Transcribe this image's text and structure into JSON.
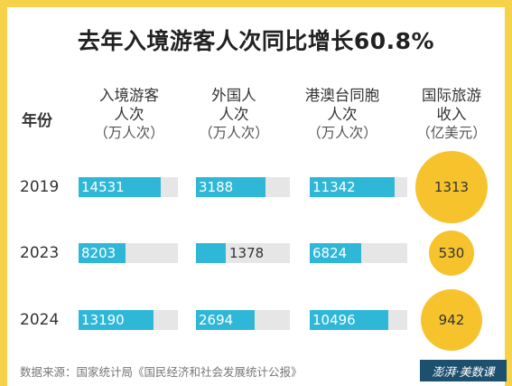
{
  "title": "去年入境游客人次同比增长60.8%",
  "headers": {
    "year": "年份",
    "inbound": {
      "line1": "入境游客",
      "line2": "人次",
      "unit": "（万人次）"
    },
    "foreign": {
      "line1": "外国人",
      "line2": "人次",
      "unit": "（万人次）"
    },
    "hkmt": {
      "line1": "港澳台同胞",
      "line2": "人次",
      "unit": "（万人次）"
    },
    "income": {
      "line1": "国际旅游",
      "line2": "收入",
      "unit": "（亿美元）"
    }
  },
  "chart_data": {
    "type": "bar",
    "categories": [
      "2019",
      "2023",
      "2024"
    ],
    "series": [
      {
        "name": "入境游客人次（万人次）",
        "values": [
          14531,
          8203,
          13190
        ]
      },
      {
        "name": "外国人人次（万人次）",
        "values": [
          3188,
          1378,
          2694
        ]
      },
      {
        "name": "港澳台同胞人次（万人次）",
        "values": [
          11342,
          6824,
          10496
        ]
      },
      {
        "name": "国际旅游收入（亿美元）",
        "values": [
          1313,
          530,
          942
        ]
      }
    ],
    "colors": {
      "bar": "#2fb7d8",
      "track": "#e6e6e6",
      "bubble": "#f6c32c",
      "frame": "#f6d24a"
    }
  },
  "source": "数据来源：国家统计局《国民经济和社会发展统计公报》",
  "logo": "澎湃·美数课"
}
